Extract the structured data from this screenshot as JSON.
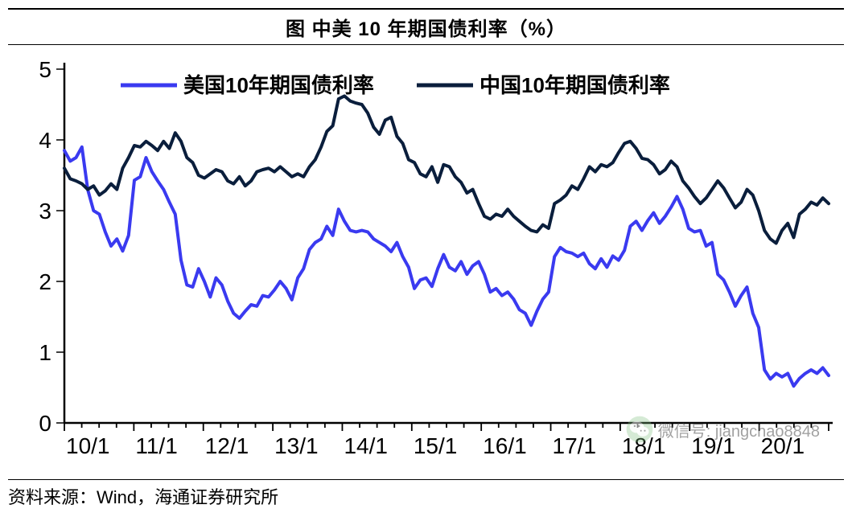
{
  "title": "图 中美 10 年期国债利率（%）",
  "source": "资料来源：Wind，海通证券研究所",
  "watermark": "微信号: jiangchao8848",
  "chart": {
    "type": "line",
    "background_color": "#ffffff",
    "title_fontsize": 24,
    "title_fontweight": "bold",
    "axis_fontsize": 28,
    "axis_color": "#000000",
    "axis_width": 2.5,
    "tick_length_outer": 10,
    "tick_length_inner": 6,
    "y_axis": {
      "min": 0,
      "max": 5,
      "ticks": [
        0,
        1,
        2,
        3,
        4,
        5
      ],
      "tick_labels": [
        "0",
        "1",
        "2",
        "3",
        "4",
        "5"
      ]
    },
    "x_axis": {
      "min": 0,
      "max": 132,
      "major_step_months": 12,
      "minor_step_months": 3,
      "tick_labels": [
        "10/1",
        "11/1",
        "12/1",
        "13/1",
        "14/1",
        "15/1",
        "16/1",
        "17/1",
        "18/1",
        "19/1",
        "20/1"
      ]
    },
    "legend": {
      "position": "top-inside",
      "fontsize": 26,
      "fontweight": "bold",
      "line_length": 70,
      "line_width": 5,
      "items": [
        {
          "label": "美国10年期国债利率",
          "color": "#3a3af0"
        },
        {
          "label": "中国10年期国债利率",
          "color": "#0a1e3c"
        }
      ]
    },
    "series": [
      {
        "name": "美国10年期国债利率",
        "color": "#3a3af0",
        "line_width": 4,
        "y": [
          3.85,
          3.7,
          3.75,
          3.9,
          3.3,
          3.0,
          2.95,
          2.7,
          2.5,
          2.6,
          2.43,
          2.65,
          3.43,
          3.48,
          3.75,
          3.55,
          3.42,
          3.3,
          3.12,
          2.95,
          2.3,
          1.95,
          1.92,
          2.18,
          2.0,
          1.78,
          2.05,
          1.95,
          1.72,
          1.55,
          1.48,
          1.58,
          1.67,
          1.65,
          1.8,
          1.78,
          1.88,
          2.0,
          1.9,
          1.74,
          2.05,
          2.18,
          2.45,
          2.55,
          2.6,
          2.78,
          2.65,
          3.02,
          2.85,
          2.72,
          2.7,
          2.72,
          2.7,
          2.6,
          2.55,
          2.5,
          2.42,
          2.55,
          2.35,
          2.2,
          1.9,
          2.02,
          2.05,
          1.93,
          2.18,
          2.38,
          2.2,
          2.15,
          2.28,
          2.1,
          2.22,
          2.28,
          2.1,
          1.85,
          1.9,
          1.8,
          1.85,
          1.75,
          1.6,
          1.55,
          1.38,
          1.58,
          1.75,
          1.85,
          2.35,
          2.48,
          2.42,
          2.4,
          2.35,
          2.4,
          2.25,
          2.18,
          2.32,
          2.2,
          2.36,
          2.3,
          2.44,
          2.78,
          2.85,
          2.72,
          2.86,
          2.97,
          2.82,
          2.92,
          3.05,
          3.2,
          3.02,
          2.75,
          2.7,
          2.72,
          2.5,
          2.55,
          2.1,
          2.02,
          1.85,
          1.65,
          1.8,
          1.92,
          1.55,
          1.35,
          0.75,
          0.62,
          0.7,
          0.65,
          0.7,
          0.52,
          0.63,
          0.7,
          0.75,
          0.7,
          0.78,
          0.67
        ]
      },
      {
        "name": "中国10年期国债利率",
        "color": "#0a1e3c",
        "line_width": 4,
        "y": [
          3.6,
          3.45,
          3.42,
          3.38,
          3.3,
          3.35,
          3.22,
          3.28,
          3.38,
          3.3,
          3.6,
          3.75,
          3.92,
          3.9,
          3.98,
          3.92,
          3.85,
          3.98,
          3.88,
          4.1,
          3.98,
          3.75,
          3.68,
          3.5,
          3.46,
          3.52,
          3.58,
          3.55,
          3.42,
          3.38,
          3.48,
          3.35,
          3.42,
          3.55,
          3.58,
          3.6,
          3.55,
          3.62,
          3.55,
          3.48,
          3.52,
          3.48,
          3.62,
          3.72,
          3.9,
          4.12,
          4.2,
          4.58,
          4.62,
          4.55,
          4.52,
          4.5,
          4.38,
          4.18,
          4.08,
          4.28,
          4.32,
          4.05,
          3.95,
          3.72,
          3.68,
          3.52,
          3.48,
          3.62,
          3.4,
          3.65,
          3.62,
          3.48,
          3.4,
          3.25,
          3.3,
          3.1,
          2.92,
          2.88,
          2.95,
          2.92,
          3.02,
          2.92,
          2.85,
          2.78,
          2.72,
          2.7,
          2.8,
          2.75,
          3.1,
          3.15,
          3.22,
          3.35,
          3.3,
          3.45,
          3.62,
          3.55,
          3.65,
          3.62,
          3.68,
          3.82,
          3.95,
          3.98,
          3.88,
          3.74,
          3.72,
          3.65,
          3.52,
          3.58,
          3.7,
          3.62,
          3.42,
          3.32,
          3.2,
          3.1,
          3.18,
          3.3,
          3.42,
          3.32,
          3.18,
          3.04,
          3.12,
          3.3,
          3.22,
          3.0,
          2.72,
          2.6,
          2.54,
          2.72,
          2.82,
          2.62,
          2.95,
          3.02,
          3.12,
          3.08,
          3.18,
          3.1
        ]
      }
    ]
  }
}
